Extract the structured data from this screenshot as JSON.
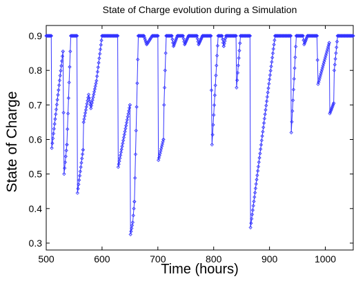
{
  "chart_data": {
    "type": "line",
    "title": "State of Charge evolution during a Simulation",
    "xlabel": "Time (hours)",
    "ylabel": "State of Charge",
    "xlim": [
      500,
      1050
    ],
    "ylim": [
      0.28,
      0.93
    ],
    "xticks": [
      500,
      600,
      700,
      800,
      900,
      1000
    ],
    "xtick_labels": [
      "500",
      "600",
      "700",
      "800",
      "900",
      "1000"
    ],
    "yticks": [
      0.3,
      0.4,
      0.5,
      0.6,
      0.7,
      0.8,
      0.9
    ],
    "ytick_labels": [
      "0.3",
      "0.4",
      "0.5",
      "0.6",
      "0.7",
      "0.8",
      "0.9"
    ],
    "grid": false,
    "legend": "none",
    "series_color": "#3333ff",
    "marker": "diamond",
    "series": [
      {
        "segments": [
          {
            "x": [
              500,
              509
            ],
            "y": [
              0.9,
              0.9
            ]
          },
          {
            "x": [
              509,
              510,
              530
            ],
            "y": [
              0.9,
              0.575,
              0.855
            ]
          },
          {
            "x": [
              530,
              532,
              537
            ],
            "y": [
              0.855,
              0.5,
              0.585
            ]
          },
          {
            "x": [
              537,
              544,
              545,
              555
            ],
            "y": [
              0.585,
              0.9,
              0.9,
              0.9
            ]
          },
          {
            "x": [
              555,
              556,
              566
            ],
            "y": [
              0.9,
              0.445,
              0.57
            ]
          },
          {
            "x": [
              566,
              567,
              576,
              580,
              590,
              600
            ],
            "y": [
              0.57,
              0.65,
              0.73,
              0.69,
              0.77,
              0.9
            ]
          },
          {
            "x": [
              600,
              628
            ],
            "y": [
              0.9,
              0.9
            ]
          },
          {
            "x": [
              628,
              629,
              650
            ],
            "y": [
              0.9,
              0.52,
              0.7
            ]
          },
          {
            "x": [
              650,
              651,
              655,
              658
            ],
            "y": [
              0.7,
              0.325,
              0.36,
              0.42
            ]
          },
          {
            "x": [
              658,
              665
            ],
            "y": [
              0.42,
              0.9
            ]
          },
          {
            "x": [
              665,
              675
            ],
            "y": [
              0.9,
              0.9
            ]
          },
          {
            "x": [
              675,
              680,
              690
            ],
            "y": [
              0.9,
              0.875,
              0.9
            ]
          },
          {
            "x": [
              690,
              700
            ],
            "y": [
              0.9,
              0.9
            ]
          },
          {
            "x": [
              700,
              701,
              710
            ],
            "y": [
              0.9,
              0.54,
              0.6
            ]
          },
          {
            "x": [
              710,
              711,
              715
            ],
            "y": [
              0.6,
              0.7,
              0.9
            ]
          },
          {
            "x": [
              715,
              725
            ],
            "y": [
              0.9,
              0.9
            ]
          },
          {
            "x": [
              725,
              728,
              735
            ],
            "y": [
              0.9,
              0.87,
              0.9
            ]
          },
          {
            "x": [
              735,
              745
            ],
            "y": [
              0.9,
              0.9
            ]
          },
          {
            "x": [
              745,
              748,
              755
            ],
            "y": [
              0.9,
              0.875,
              0.9
            ]
          },
          {
            "x": [
              755,
              770
            ],
            "y": [
              0.9,
              0.9
            ]
          },
          {
            "x": [
              770,
              773,
              780
            ],
            "y": [
              0.9,
              0.875,
              0.9
            ]
          },
          {
            "x": [
              780,
              795
            ],
            "y": [
              0.9,
              0.9
            ]
          },
          {
            "x": [
              795,
              797,
              808
            ],
            "y": [
              0.9,
              0.585,
              0.9
            ]
          },
          {
            "x": [
              808,
              815,
              818
            ],
            "y": [
              0.9,
              0.9,
              0.87
            ]
          },
          {
            "x": [
              818,
              822,
              840
            ],
            "y": [
              0.87,
              0.9,
              0.9
            ]
          },
          {
            "x": [
              840,
              841,
              848
            ],
            "y": [
              0.9,
              0.75,
              0.9
            ]
          },
          {
            "x": [
              848,
              865
            ],
            "y": [
              0.9,
              0.9
            ]
          },
          {
            "x": [
              865,
              866,
              910
            ],
            "y": [
              0.9,
              0.345,
              0.9
            ]
          },
          {
            "x": [
              910,
              938
            ],
            "y": [
              0.9,
              0.9
            ]
          },
          {
            "x": [
              938,
              939,
              948
            ],
            "y": [
              0.9,
              0.62,
              0.9
            ]
          },
          {
            "x": [
              948,
              960,
              962,
              968
            ],
            "y": [
              0.9,
              0.9,
              0.875,
              0.9
            ]
          },
          {
            "x": [
              968,
              985
            ],
            "y": [
              0.9,
              0.9
            ]
          },
          {
            "x": [
              985,
              987,
              1007
            ],
            "y": [
              0.9,
              0.76,
              0.88
            ]
          },
          {
            "x": [
              1007,
              1008,
              1015
            ],
            "y": [
              0.88,
              0.675,
              0.705
            ]
          },
          {
            "x": [
              1015,
              1016,
              1022
            ],
            "y": [
              0.705,
              0.8,
              0.9
            ]
          },
          {
            "x": [
              1022,
              1050
            ],
            "y": [
              0.9,
              0.9
            ]
          }
        ]
      }
    ]
  }
}
